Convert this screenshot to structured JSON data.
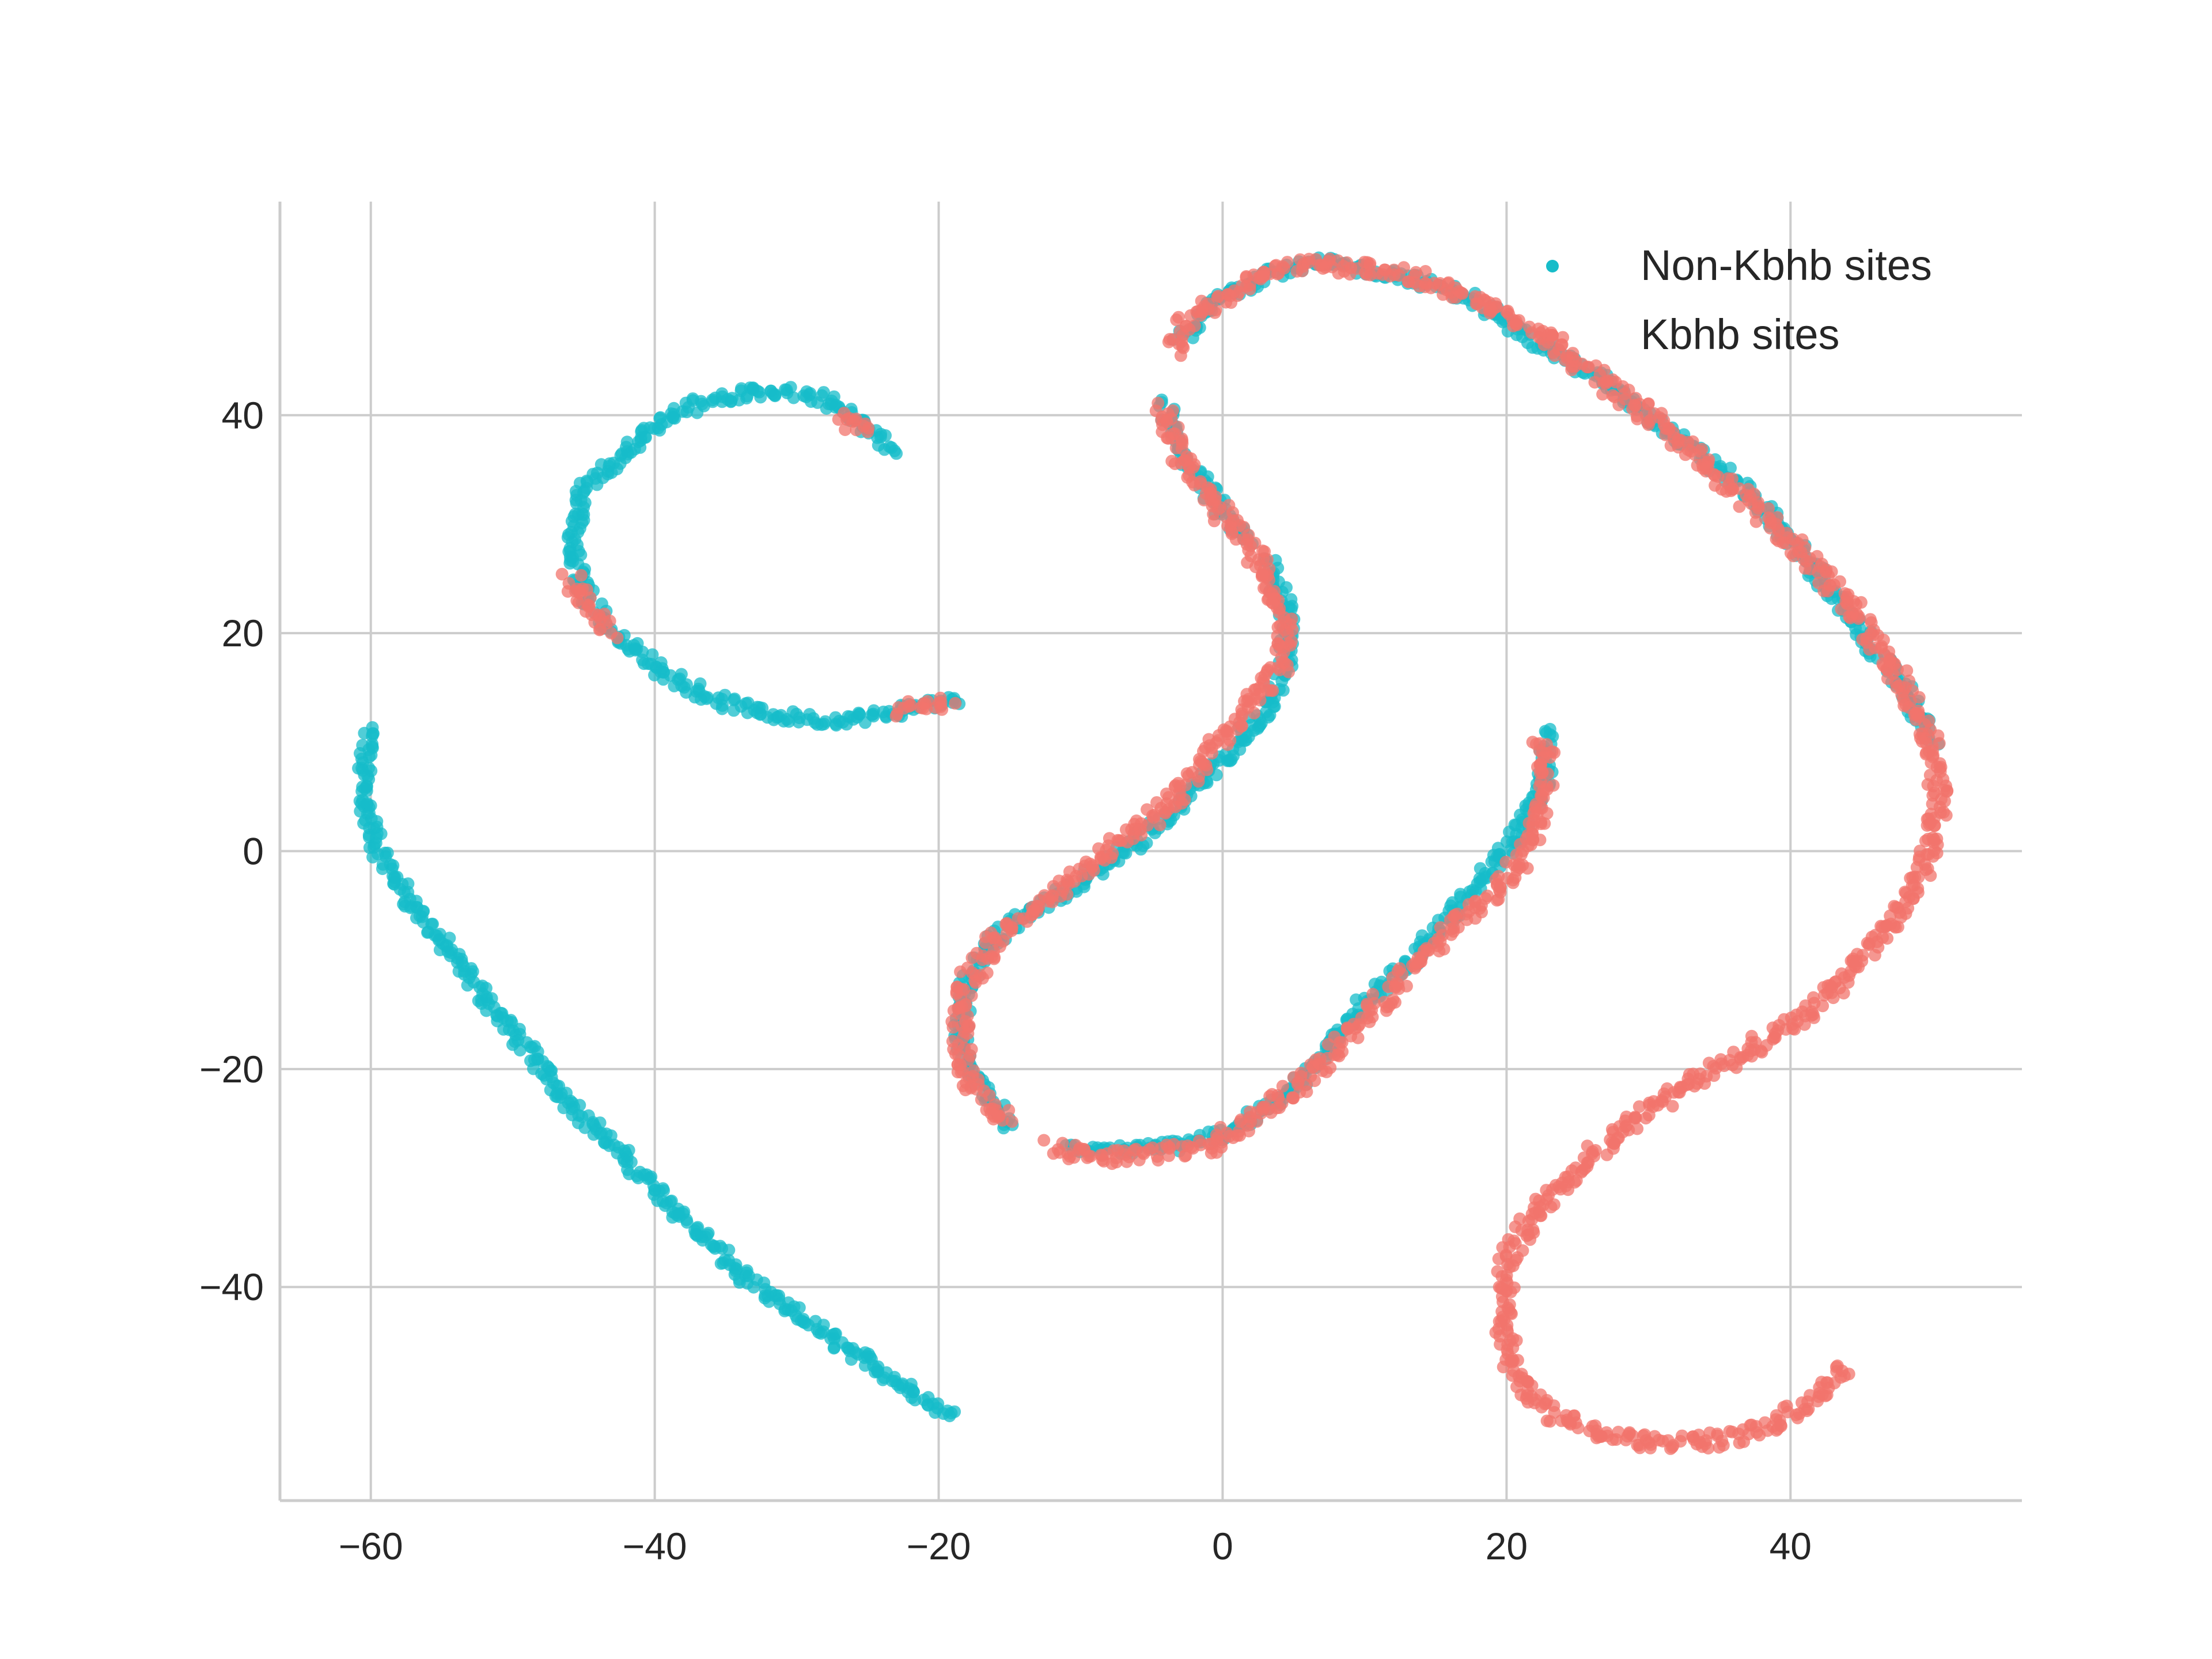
{
  "chart_data": {
    "type": "scatter",
    "title": "",
    "xlabel": "",
    "ylabel": "",
    "xlim": [
      -66.4,
      56.3
    ],
    "ylim": [
      -59.6,
      59.6
    ],
    "x_ticks": [
      -60,
      -40,
      -20,
      0,
      20,
      40
    ],
    "y_ticks": [
      -40,
      -20,
      0,
      20,
      40
    ],
    "x_tick_labels": [
      "−60",
      "−40",
      "−20",
      "0",
      "20",
      "40"
    ],
    "y_tick_labels": [
      "−40",
      "−20",
      "0",
      "20",
      "40"
    ],
    "grid": true,
    "legend_position": "top-right",
    "series": [
      {
        "name": "Non-Kbhb sites",
        "color": "#17bcc9",
        "curves": [
          [
            [
              -60,
              11
            ],
            [
              -60.5,
              8
            ],
            [
              -60.5,
              5
            ],
            [
              -59.5,
              0
            ],
            [
              -57,
              -5
            ],
            [
              -54,
              -10
            ],
            [
              -51,
              -15
            ],
            [
              -46,
              -23
            ],
            [
              -40,
              -31
            ],
            [
              -33,
              -40
            ],
            [
              -26,
              -46
            ],
            [
              -19,
              -52
            ]
          ],
          [
            [
              -23,
              37
            ],
            [
              -25,
              39
            ],
            [
              -28,
              41.5
            ],
            [
              -31,
              42.2
            ],
            [
              -34,
              42
            ],
            [
              -37,
              41
            ],
            [
              -40,
              39
            ],
            [
              -42.5,
              36
            ],
            [
              -45,
              33
            ],
            [
              -46,
              28
            ],
            [
              -45,
              24
            ],
            [
              -43,
              20
            ],
            [
              -40,
              17
            ],
            [
              -36,
              14
            ],
            [
              -32,
              12.5
            ],
            [
              -28,
              12
            ],
            [
              -24,
              12.5
            ],
            [
              -21,
              13.5
            ],
            [
              -18.5,
              13.8
            ]
          ],
          [
            [
              23,
              11
            ],
            [
              22.5,
              6
            ],
            [
              21,
              2
            ],
            [
              18,
              -3
            ],
            [
              14,
              -9
            ],
            [
              10,
              -14
            ],
            [
              7,
              -19
            ],
            [
              4,
              -23
            ],
            [
              0,
              -26
            ],
            [
              -3,
              -27
            ],
            [
              -7,
              -27.5
            ],
            [
              -11,
              -27
            ]
          ],
          [
            [
              -15,
              -25
            ],
            [
              -17,
              -22
            ],
            [
              -18.5,
              -17
            ],
            [
              -18,
              -12
            ],
            [
              -16,
              -8
            ],
            [
              -13,
              -5
            ],
            [
              -9,
              -2
            ],
            [
              -6,
              1
            ],
            [
              -3,
              4
            ],
            [
              -1,
              7
            ],
            [
              1,
              10
            ],
            [
              3,
              13
            ],
            [
              4.5,
              17
            ],
            [
              4.5,
              22
            ],
            [
              3,
              27
            ]
          ],
          [
            [
              -4,
              41
            ],
            [
              -3.5,
              38
            ],
            [
              -2,
              35
            ],
            [
              0,
              31
            ],
            [
              2,
              28
            ]
          ],
          [
            [
              -3,
              47
            ],
            [
              0,
              51
            ],
            [
              3,
              53
            ],
            [
              7,
              54
            ],
            [
              12,
              53
            ],
            [
              17,
              51
            ],
            [
              22,
              47
            ],
            [
              27,
              43
            ],
            [
              32,
              38
            ],
            [
              37,
              33
            ],
            [
              41,
              27
            ],
            [
              45,
              20
            ],
            [
              48,
              15
            ],
            [
              50,
              10
            ]
          ]
        ]
      },
      {
        "name": "Kbhb sites",
        "color": "#f2746c",
        "curves": [
          [
            [
              -3.5,
              46
            ],
            [
              -3,
              48
            ],
            [
              -1,
              50
            ],
            [
              2,
              52.5
            ],
            [
              6,
              53.8
            ],
            [
              10,
              53.5
            ],
            [
              14,
              52.5
            ],
            [
              18,
              50.5
            ],
            [
              22,
              48
            ],
            [
              26,
              44
            ],
            [
              30,
              40
            ],
            [
              34,
              35.5
            ],
            [
              38,
              31
            ],
            [
              42,
              26
            ],
            [
              45,
              21
            ],
            [
              48,
              15
            ],
            [
              50,
              10
            ],
            [
              50.5,
              5
            ],
            [
              50,
              0
            ],
            [
              48,
              -5
            ],
            [
              45,
              -10
            ],
            [
              41,
              -15
            ],
            [
              36,
              -19
            ],
            [
              31,
              -23
            ],
            [
              26,
              -28
            ],
            [
              22,
              -33
            ],
            [
              20,
              -38
            ],
            [
              19.8,
              -43
            ],
            [
              20.5,
              -48
            ],
            [
              23,
              -51.5
            ],
            [
              27,
              -53.5
            ],
            [
              31,
              -54.5
            ],
            [
              35,
              -54
            ],
            [
              39,
              -52.5
            ],
            [
              42,
              -50
            ],
            [
              44,
              -47.5
            ]
          ],
          [
            [
              -4,
              41
            ],
            [
              -3.5,
              38
            ],
            [
              -2,
              34
            ],
            [
              0,
              31
            ],
            [
              2,
              28
            ],
            [
              3.5,
              24
            ],
            [
              4.5,
              21
            ],
            [
              4.5,
              18
            ],
            [
              3,
              15
            ],
            [
              1,
              12
            ],
            [
              -1,
              9
            ],
            [
              -2,
              7
            ],
            [
              -4,
              4
            ],
            [
              -6,
              2
            ],
            [
              -8,
              0
            ],
            [
              -10,
              -2
            ],
            [
              -12,
              -4
            ],
            [
              -14,
              -6
            ],
            [
              -16,
              -8
            ],
            [
              -18,
              -12
            ],
            [
              -18.5,
              -16
            ],
            [
              -18,
              -20
            ],
            [
              -17,
              -23
            ],
            [
              -15,
              -25
            ]
          ],
          [
            [
              -12,
              -27
            ],
            [
              -9,
              -28
            ],
            [
              -5,
              -28
            ],
            [
              -1,
              -27
            ],
            [
              2,
              -25
            ],
            [
              5,
              -22
            ],
            [
              8,
              -18
            ],
            [
              11,
              -14
            ],
            [
              14,
              -10
            ],
            [
              17,
              -6
            ],
            [
              19,
              -4
            ],
            [
              21,
              -1
            ],
            [
              22.5,
              3
            ],
            [
              22.8,
              8
            ],
            [
              22.5,
              10.5
            ]
          ],
          [
            [
              -23,
              13
            ],
            [
              -21,
              13.5
            ],
            [
              -19,
              13.8
            ]
          ],
          [
            [
              -27,
              40
            ],
            [
              -25,
              38.5
            ]
          ],
          [
            [
              -46,
              25
            ],
            [
              -44.5,
              22
            ],
            [
              -43,
              20
            ]
          ]
        ]
      }
    ]
  }
}
